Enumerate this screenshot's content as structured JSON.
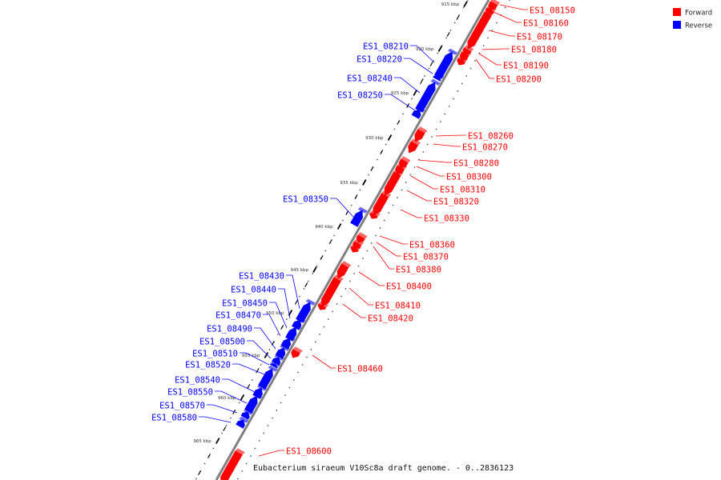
{
  "title": "Eubacterium siraeum V10Sc8a draft genome. - 0..2836123",
  "legend": {
    "items": [
      {
        "label": "Forward",
        "color": "#ff0000"
      },
      {
        "label": "Reverse",
        "color": "#0000ff"
      }
    ]
  },
  "colors": {
    "forward": "#ff0000",
    "reverse": "#0000ff",
    "backbone": "#808080"
  },
  "tick_labels": [
    "915 kbp",
    "920 kbp",
    "925 kbp",
    "930 kbp",
    "935 kbp",
    "940 kbp",
    "945 kbp",
    "950 kbp",
    "955 kbp",
    "960 kbp",
    "965 kbp"
  ],
  "forward_genes": [
    "ES1_08150",
    "ES1_08160",
    "ES1_08170",
    "ES1_08180",
    "ES1_08190",
    "ES1_08200",
    "ES1_08260",
    "ES1_08270",
    "ES1_08280",
    "ES1_08300",
    "ES1_08310",
    "ES1_08320",
    "ES1_08330",
    "ES1_08360",
    "ES1_08370",
    "ES1_08380",
    "ES1_08400",
    "ES1_08410",
    "ES1_08420",
    "ES1_08460",
    "ES1_08600"
  ],
  "reverse_genes": [
    "ES1_08210",
    "ES1_08220",
    "ES1_08240",
    "ES1_08250",
    "ES1_08350",
    "ES1_08430",
    "ES1_08440",
    "ES1_08450",
    "ES1_08470",
    "ES1_08490",
    "ES1_08500",
    "ES1_08510",
    "ES1_08520",
    "ES1_08540",
    "ES1_08550",
    "ES1_08570",
    "ES1_08580"
  ]
}
